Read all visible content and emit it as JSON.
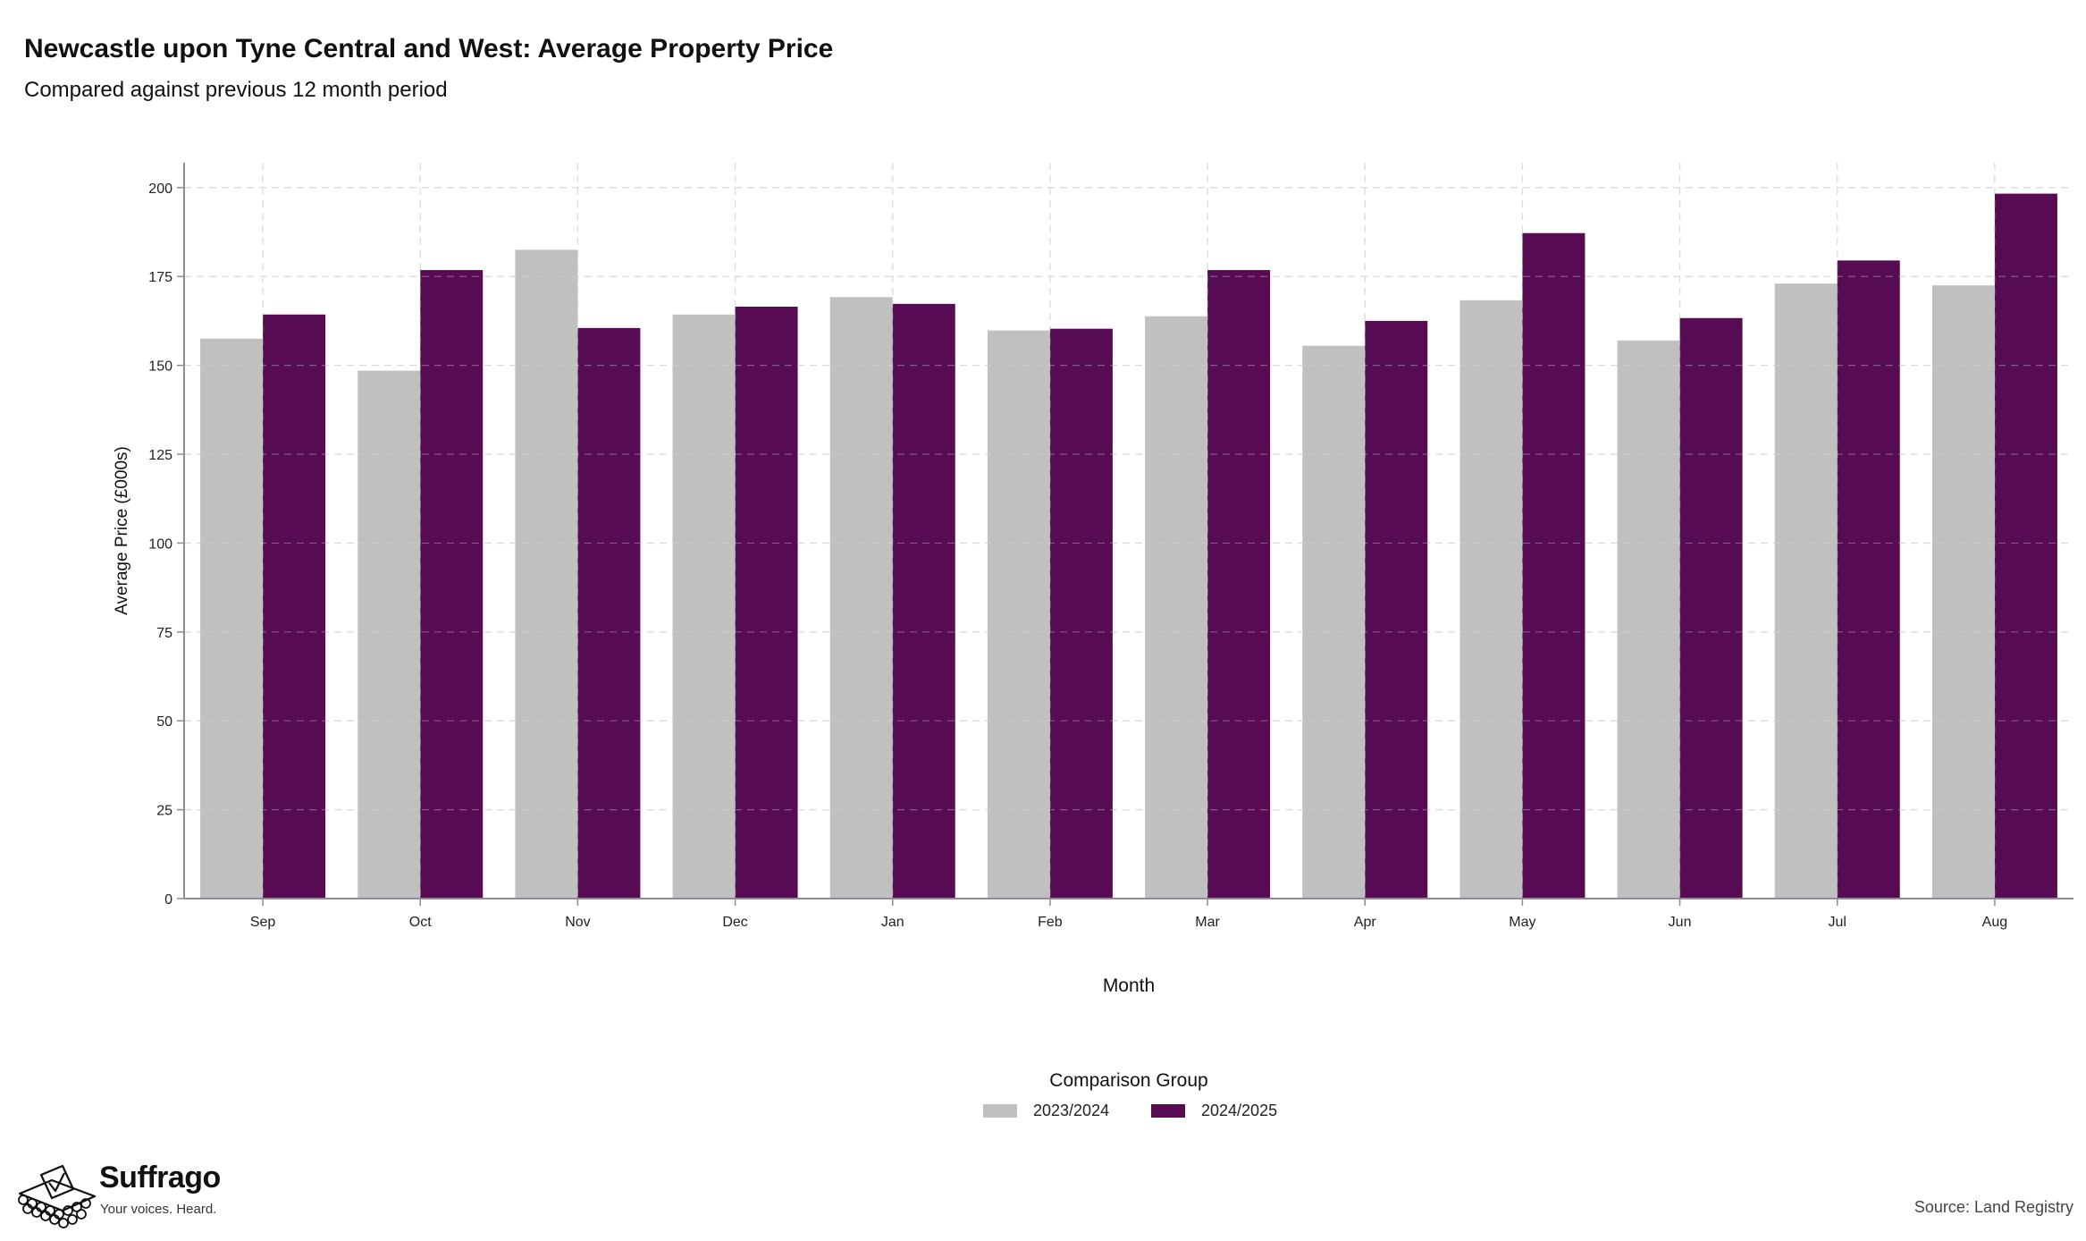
{
  "title": "Newcastle upon Tyne Central and West: Average Property Price",
  "subtitle": "Compared against previous 12 month period",
  "source": "Source: Land Registry",
  "brand": {
    "name": "Suffrago",
    "tagline": "Your voices. Heard."
  },
  "colors": {
    "series_2023": "#c0c0c0",
    "series_2024": "#560b52",
    "axis": "#8f8a93",
    "grid": "#dcdcdc"
  },
  "legend": {
    "title": "Comparison Group",
    "items": [
      {
        "label": "2023/2024",
        "color": "#c0c0c0"
      },
      {
        "label": "2024/2025",
        "color": "#560b52"
      }
    ]
  },
  "chart_data": {
    "type": "bar",
    "title": "Newcastle upon Tyne Central and West: Average Property Price",
    "subtitle": "Compared against previous 12 month period",
    "xlabel": "Month",
    "ylabel": "Average Price (£000s)",
    "ylim": [
      0,
      207
    ],
    "yticks": [
      0,
      25,
      50,
      75,
      100,
      125,
      150,
      175,
      200
    ],
    "grid": true,
    "legend_position": "bottom",
    "categories": [
      "Sep",
      "Oct",
      "Nov",
      "Dec",
      "Jan",
      "Feb",
      "Mar",
      "Apr",
      "May",
      "Jun",
      "Jul",
      "Aug"
    ],
    "series": [
      {
        "name": "2023/2024",
        "values": [
          157.5,
          148.5,
          182.5,
          164.3,
          169.2,
          159.8,
          163.8,
          155.5,
          168.3,
          157.0,
          173.0,
          172.5
        ]
      },
      {
        "name": "2024/2025",
        "values": [
          164.3,
          176.8,
          160.5,
          166.5,
          167.3,
          160.3,
          176.8,
          162.5,
          187.2,
          163.3,
          179.5,
          198.3
        ]
      }
    ]
  }
}
